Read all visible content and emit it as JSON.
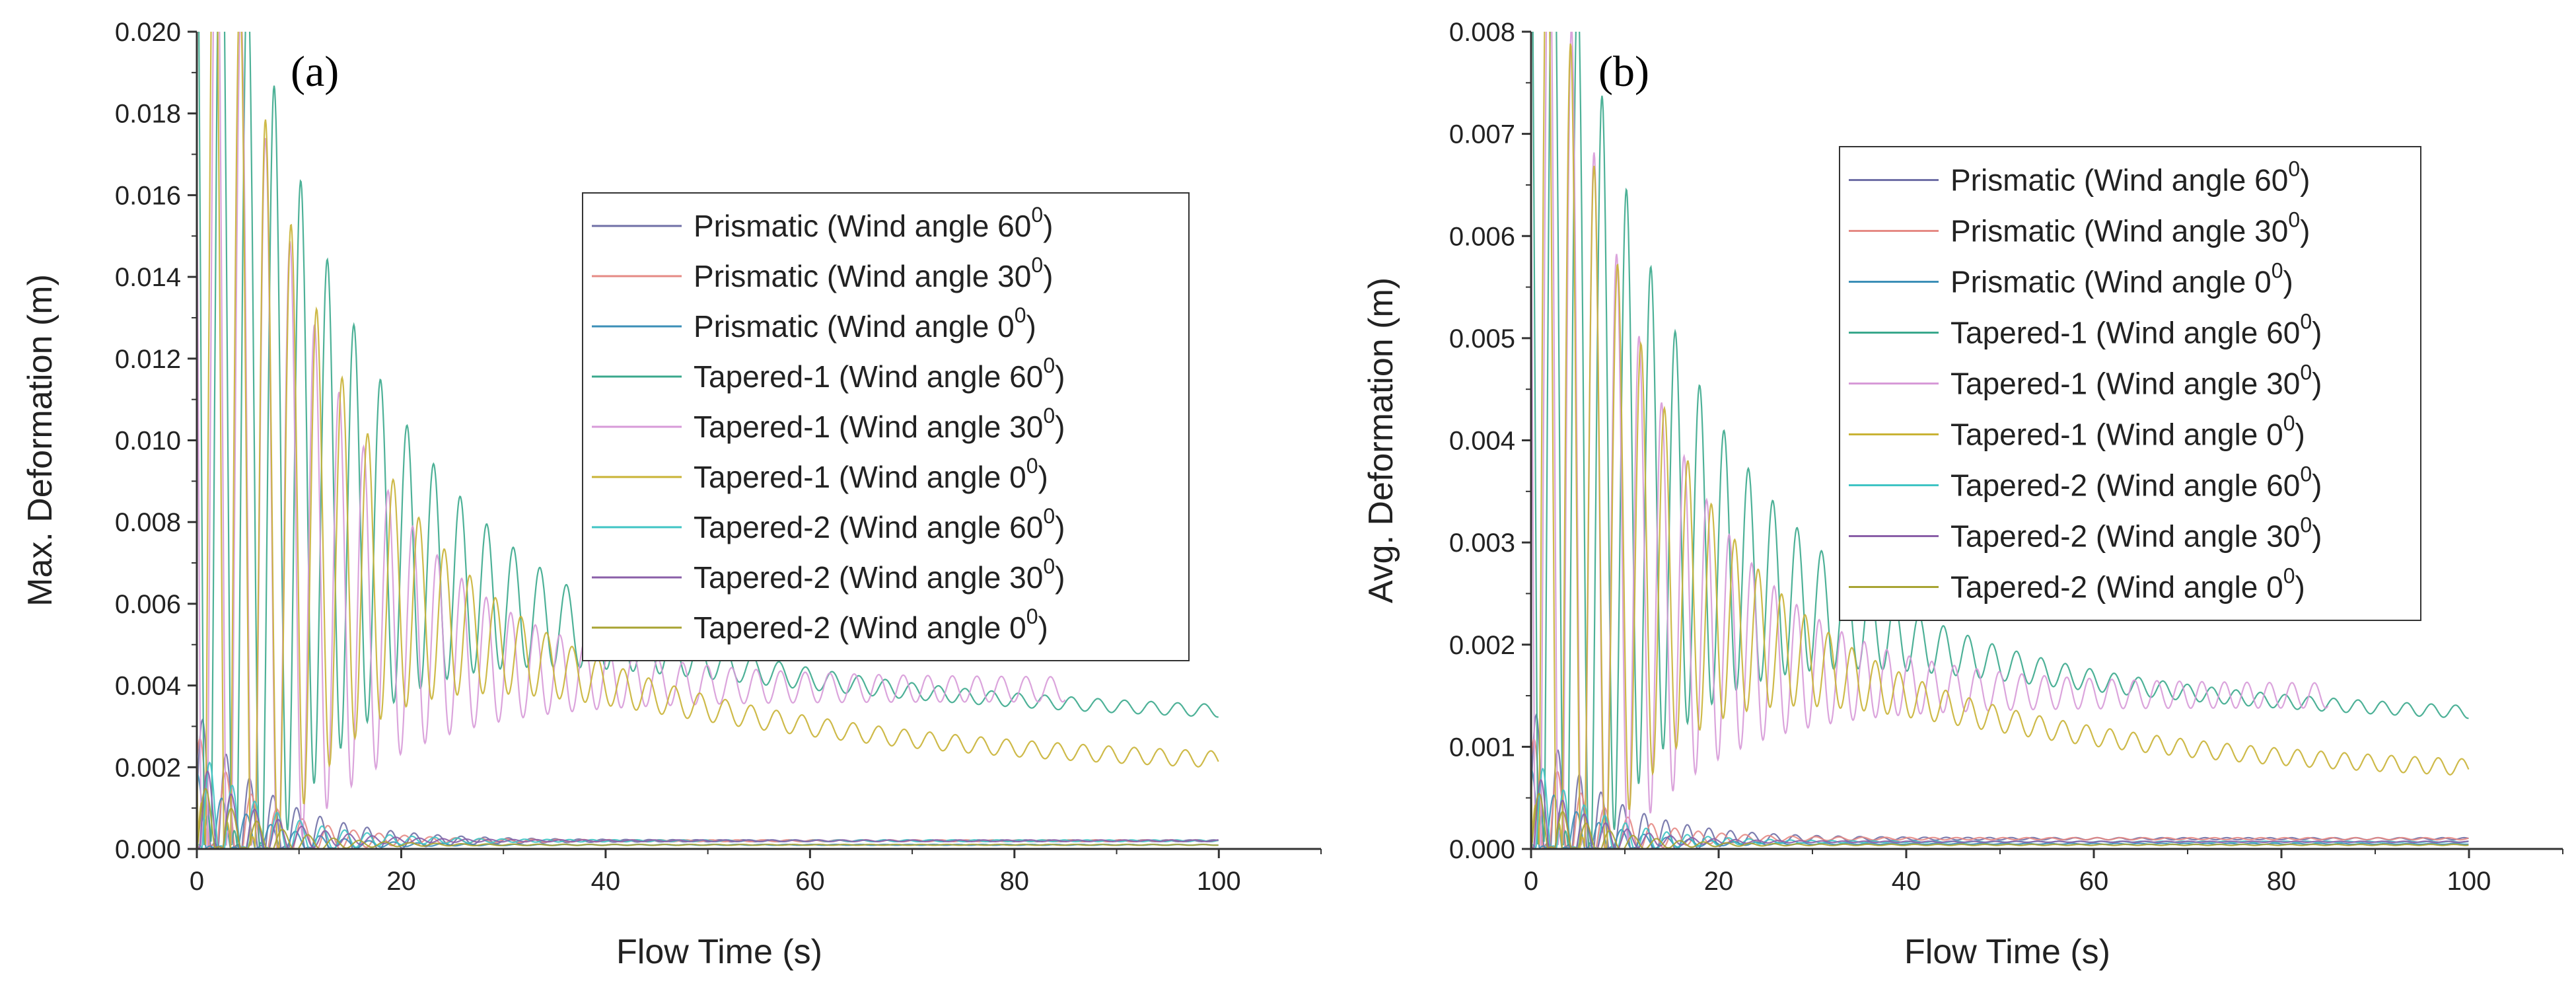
{
  "colors": {
    "axis": "#333333",
    "palette": [
      "#6f6fa6",
      "#e58a84",
      "#3b8fb7",
      "#3aa88c",
      "#d79ad8",
      "#c9b335",
      "#3fc4c4",
      "#8a5fa8",
      "#a8a332"
    ]
  },
  "chart_data": [
    {
      "type": "line",
      "panel_label": "(a)",
      "xlabel": "Flow Time (s)",
      "ylabel": "Max. Deformation (m)",
      "xlim": [
        0,
        110
      ],
      "ylim": [
        0,
        0.02
      ],
      "xticks": [
        "0",
        "20",
        "40",
        "60",
        "80",
        "100"
      ],
      "yticks": [
        "0.000",
        "0.002",
        "0.004",
        "0.006",
        "0.008",
        "0.010",
        "0.012",
        "0.014",
        "0.016",
        "0.018",
        "0.020"
      ],
      "legend_position": "right",
      "series": [
        {
          "name": "Prismatic (Wind angle 60",
          "sup": "0",
          "close": ")",
          "color": "#6f6fa6",
          "end_x": 100,
          "peak": 0.0022,
          "mean": 0.0002,
          "decay": 8,
          "mean_tau": 5,
          "period": 2.3,
          "tail_amp": 2e-05
        },
        {
          "name": "Prismatic (Wind angle 30",
          "sup": "0",
          "close": ")",
          "color": "#e58a84",
          "end_x": 100,
          "peak": 0.0018,
          "mean": 0.0002,
          "decay": 7,
          "mean_tau": 5,
          "period": 2.5,
          "tail_amp": 2e-05
        },
        {
          "name": "Prismatic (Wind angle 0",
          "sup": "0",
          "close": ")",
          "color": "#3b8fb7",
          "end_x": 100,
          "peak": 0.0012,
          "mean": 0.0001,
          "decay": 6,
          "mean_tau": 5,
          "period": 2.4,
          "tail_amp": 1e-05
        },
        {
          "name": "Tapered-1 (Wind angle 60",
          "sup": "0",
          "close": ")",
          "color": "#3aa88c",
          "end_x": 100,
          "peak": 0.0175,
          "mean": 0.0031,
          "decay": 12,
          "mean_tau": 30,
          "period": 2.6,
          "tail_amp": 0.00015
        },
        {
          "name": "Tapered-1 (Wind angle 30",
          "sup": "0",
          "close": ")",
          "color": "#d79ad8",
          "end_x": 85,
          "peak": 0.0165,
          "mean": 0.0039,
          "decay": 11,
          "mean_tau": 12,
          "period": 2.4,
          "tail_amp": 0.0003
        },
        {
          "name": "Tapered-1 (Wind angle 0",
          "sup": "0",
          "close": ")",
          "color": "#c9b335",
          "end_x": 100,
          "peak": 0.0181,
          "mean": 0.0019,
          "decay": 10,
          "mean_tau": 30,
          "period": 2.5,
          "tail_amp": 0.0002
        },
        {
          "name": "Tapered-2 (Wind angle 60",
          "sup": "0",
          "close": ")",
          "color": "#3fc4c4",
          "end_x": 100,
          "peak": 0.0016,
          "mean": 0.0002,
          "decay": 7,
          "mean_tau": 5,
          "period": 2.2,
          "tail_amp": 2e-05
        },
        {
          "name": "Tapered-2 (Wind angle 30",
          "sup": "0",
          "close": ")",
          "color": "#8a5fa8",
          "end_x": 100,
          "peak": 0.0014,
          "mean": 0.0002,
          "decay": 6,
          "mean_tau": 5,
          "period": 2.3,
          "tail_amp": 2e-05
        },
        {
          "name": "Tapered-2 (Wind angle 0",
          "sup": "0",
          "close": ")",
          "color": "#a8a332",
          "end_x": 100,
          "peak": 0.0011,
          "mean": 0.0001,
          "decay": 6,
          "mean_tau": 5,
          "period": 2.5,
          "tail_amp": 1e-05
        }
      ]
    },
    {
      "type": "line",
      "panel_label": "(b)",
      "xlabel": "Flow Time (s)",
      "ylabel": "Avg. Deformation (m)",
      "xlim": [
        0,
        110
      ],
      "ylim": [
        0,
        0.008
      ],
      "xticks": [
        "0",
        "20",
        "40",
        "60",
        "80",
        "100"
      ],
      "yticks": [
        "0.000",
        "0.001",
        "0.002",
        "0.003",
        "0.004",
        "0.005",
        "0.006",
        "0.007",
        "0.008"
      ],
      "legend_position": "top-right",
      "series": [
        {
          "name": "Prismatic (Wind angle 60",
          "sup": "0",
          "close": ")",
          "color": "#6f6fa6",
          "end_x": 100,
          "peak": 0.0009,
          "mean": 0.0001,
          "decay": 8,
          "mean_tau": 5,
          "period": 2.3,
          "tail_amp": 1e-05
        },
        {
          "name": "Prismatic (Wind angle 30",
          "sup": "0",
          "close": ")",
          "color": "#e58a84",
          "end_x": 100,
          "peak": 0.0007,
          "mean": 0.0001,
          "decay": 7,
          "mean_tau": 5,
          "period": 2.5,
          "tail_amp": 1e-05
        },
        {
          "name": "Prismatic (Wind angle 0",
          "sup": "0",
          "close": ")",
          "color": "#3b8fb7",
          "end_x": 100,
          "peak": 0.0005,
          "mean": 5e-05,
          "decay": 6,
          "mean_tau": 5,
          "period": 2.4,
          "tail_amp": 5e-06
        },
        {
          "name": "Tapered-1 (Wind angle 60",
          "sup": "0",
          "close": ")",
          "color": "#3aa88c",
          "end_x": 100,
          "peak": 0.0069,
          "mean": 0.00123,
          "decay": 12,
          "mean_tau": 30,
          "period": 2.6,
          "tail_amp": 6e-05
        },
        {
          "name": "Tapered-1 (Wind angle 30",
          "sup": "0",
          "close": ")",
          "color": "#d79ad8",
          "end_x": 85,
          "peak": 0.0065,
          "mean": 0.0015,
          "decay": 11,
          "mean_tau": 12,
          "period": 2.4,
          "tail_amp": 0.00012
        },
        {
          "name": "Tapered-1 (Wind angle 0",
          "sup": "0",
          "close": ")",
          "color": "#c9b335",
          "end_x": 100,
          "peak": 0.0068,
          "mean": 0.00069,
          "decay": 10,
          "mean_tau": 30,
          "period": 2.5,
          "tail_amp": 8e-05
        },
        {
          "name": "Tapered-2 (Wind angle 60",
          "sup": "0",
          "close": ")",
          "color": "#3fc4c4",
          "end_x": 100,
          "peak": 0.0006,
          "mean": 7e-05,
          "decay": 7,
          "mean_tau": 5,
          "period": 2.2,
          "tail_amp": 5e-06
        },
        {
          "name": "Tapered-2 (Wind angle 30",
          "sup": "0",
          "close": ")",
          "color": "#8a5fa8",
          "end_x": 100,
          "peak": 0.0005,
          "mean": 7e-05,
          "decay": 6,
          "mean_tau": 5,
          "period": 2.3,
          "tail_amp": 5e-06
        },
        {
          "name": "Tapered-2 (Wind angle 0",
          "sup": "0",
          "close": ")",
          "color": "#a8a332",
          "end_x": 100,
          "peak": 0.0004,
          "mean": 4e-05,
          "decay": 6,
          "mean_tau": 5,
          "period": 2.5,
          "tail_amp": 5e-06
        }
      ]
    }
  ]
}
